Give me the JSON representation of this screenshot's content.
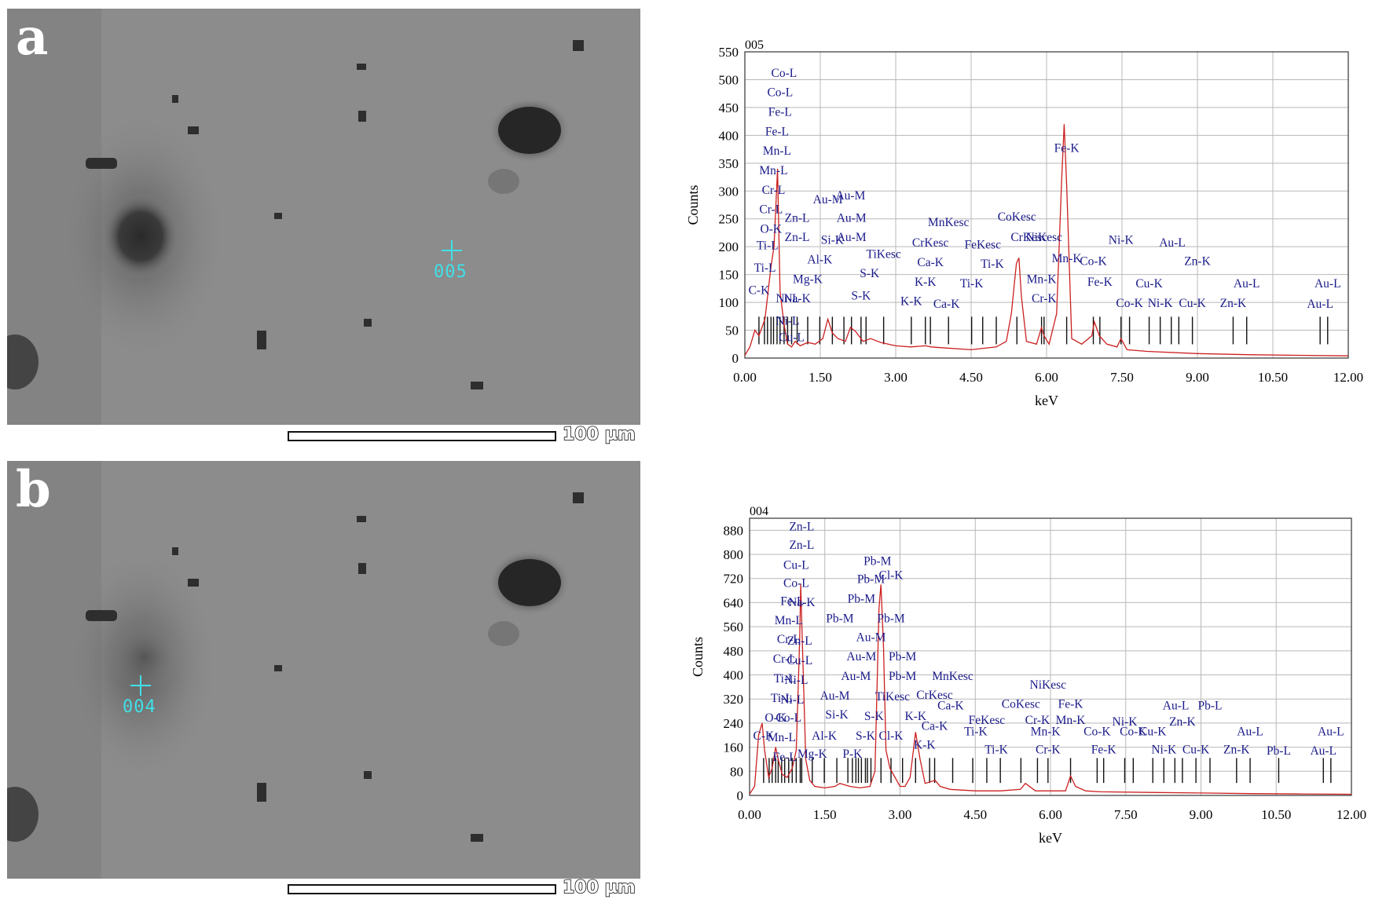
{
  "panels": [
    {
      "letter": "a",
      "marker_label": "005",
      "scale_label": "100 µm"
    },
    {
      "letter": "b",
      "marker_label": "004",
      "scale_label": "100 µm"
    }
  ],
  "colors": {
    "spectrum": "#cc2020",
    "element_label": "#1a1a8a",
    "marker": "#40e0e8",
    "grid": "#b8b8b8"
  },
  "chart_data": [
    {
      "type": "line",
      "title": "005",
      "xlabel": "keV",
      "ylabel": "Counts",
      "xlim": [
        0,
        12
      ],
      "ylim": [
        0,
        550
      ],
      "x_ticks": [
        0,
        1.5,
        3,
        4.5,
        6,
        7.5,
        9,
        10.5,
        12
      ],
      "x_tick_labels": [
        "0.00",
        "1.50",
        "3.00",
        "4.50",
        "6.00",
        "7.50",
        "9.00",
        "10.50",
        "12.00"
      ],
      "y_ticks": [
        0,
        50,
        100,
        150,
        200,
        250,
        300,
        350,
        400,
        450,
        500,
        550
      ],
      "grid": true,
      "series": [
        {
          "x": [
            0.0,
            0.1,
            0.2,
            0.28,
            0.4,
            0.52,
            0.58,
            0.65,
            0.7,
            0.78,
            0.85,
            0.93,
            1.0,
            1.1,
            1.25,
            1.4,
            1.55,
            1.65,
            1.74,
            1.85,
            2.0,
            2.1,
            2.2,
            2.35,
            2.5,
            2.7,
            3.0,
            3.3,
            3.6,
            3.7,
            4.0,
            4.5,
            5.0,
            5.2,
            5.3,
            5.4,
            5.45,
            5.5,
            5.6,
            5.8,
            5.9,
            5.95,
            6.05,
            6.2,
            6.3,
            6.35,
            6.4,
            6.5,
            6.7,
            6.9,
            6.95,
            7.05,
            7.2,
            7.4,
            7.48,
            7.6,
            8.0,
            9.0,
            10.0,
            11.0,
            12.0
          ],
          "y": [
            5,
            20,
            50,
            40,
            70,
            165,
            200,
            340,
            120,
            60,
            25,
            20,
            30,
            22,
            28,
            25,
            35,
            70,
            45,
            35,
            30,
            55,
            48,
            30,
            35,
            28,
            22,
            20,
            22,
            20,
            18,
            15,
            20,
            30,
            80,
            170,
            180,
            110,
            30,
            25,
            55,
            40,
            25,
            80,
            320,
            420,
            310,
            35,
            25,
            40,
            65,
            40,
            25,
            20,
            35,
            15,
            12,
            8,
            6,
            5,
            4
          ]
        }
      ],
      "element_lines_keV": [
        0.28,
        0.39,
        0.45,
        0.52,
        0.57,
        0.64,
        0.7,
        0.78,
        0.85,
        0.93,
        1.04,
        1.25,
        1.49,
        1.74,
        1.97,
        2.12,
        2.31,
        2.41,
        2.76,
        3.31,
        3.59,
        3.69,
        4.05,
        4.51,
        4.73,
        5.0,
        5.41,
        5.9,
        5.95,
        6.4,
        6.93,
        7.06,
        7.48,
        7.65,
        8.04,
        8.26,
        8.48,
        8.63,
        8.9,
        9.71,
        9.98,
        11.44,
        11.59
      ],
      "annotations": [
        {
          "text": "Co-L",
          "x": 0.78,
          "y": 505
        },
        {
          "text": "Co-L",
          "x": 0.7,
          "y": 470
        },
        {
          "text": "Fe-L",
          "x": 0.7,
          "y": 435
        },
        {
          "text": "Fe-L",
          "x": 0.64,
          "y": 400
        },
        {
          "text": "Mn-L",
          "x": 0.64,
          "y": 365
        },
        {
          "text": "Mn-L",
          "x": 0.57,
          "y": 330
        },
        {
          "text": "Cr-L",
          "x": 0.57,
          "y": 295
        },
        {
          "text": "Cr-L",
          "x": 0.52,
          "y": 260
        },
        {
          "text": "O-K",
          "x": 0.52,
          "y": 225
        },
        {
          "text": "Ti-L",
          "x": 0.45,
          "y": 195
        },
        {
          "text": "Ti-L",
          "x": 0.4,
          "y": 155
        },
        {
          "text": "C-K",
          "x": 0.28,
          "y": 115
        },
        {
          "text": "Ni-L",
          "x": 0.85,
          "y": 100
        },
        {
          "text": "Cu-L",
          "x": 0.93,
          "y": 30
        },
        {
          "text": "Ni-L",
          "x": 0.85,
          "y": 60
        },
        {
          "text": "Zn-L",
          "x": 1.04,
          "y": 245
        },
        {
          "text": "Zn-L",
          "x": 1.04,
          "y": 210
        },
        {
          "text": "Na-K",
          "x": 1.04,
          "y": 100
        },
        {
          "text": "Mg-K",
          "x": 1.25,
          "y": 135
        },
        {
          "text": "Al-K",
          "x": 1.49,
          "y": 170
        },
        {
          "text": "Si-K",
          "x": 1.74,
          "y": 205
        },
        {
          "text": "Au-M",
          "x": 1.65,
          "y": 278
        },
        {
          "text": "Au-M",
          "x": 2.1,
          "y": 285
        },
        {
          "text": "Au-M",
          "x": 2.12,
          "y": 245
        },
        {
          "text": "Au-M",
          "x": 2.12,
          "y": 210
        },
        {
          "text": "S-K",
          "x": 2.31,
          "y": 105
        },
        {
          "text": "S-K",
          "x": 2.48,
          "y": 145
        },
        {
          "text": "TiKesc",
          "x": 2.76,
          "y": 180
        },
        {
          "text": "K-K",
          "x": 3.31,
          "y": 95
        },
        {
          "text": "K-K",
          "x": 3.59,
          "y": 130
        },
        {
          "text": "Ca-K",
          "x": 3.69,
          "y": 165
        },
        {
          "text": "Ca-K",
          "x": 4.01,
          "y": 90
        },
        {
          "text": "CrKesc",
          "x": 3.69,
          "y": 200
        },
        {
          "text": "MnKesc",
          "x": 4.05,
          "y": 237
        },
        {
          "text": "FeKesc",
          "x": 4.73,
          "y": 197
        },
        {
          "text": "CoKesc",
          "x": 5.41,
          "y": 247
        },
        {
          "text": "Ti-K",
          "x": 4.51,
          "y": 127
        },
        {
          "text": "Ti-K",
          "x": 4.92,
          "y": 162
        },
        {
          "text": "CrKesc",
          "x": 5.65,
          "y": 210
        },
        {
          "text": "NiKesc",
          "x": 5.95,
          "y": 210
        },
        {
          "text": "Mn-K",
          "x": 5.9,
          "y": 135
        },
        {
          "text": "Cr-K",
          "x": 5.95,
          "y": 100
        },
        {
          "text": "Mn-K",
          "x": 6.4,
          "y": 172
        },
        {
          "text": "Fe-K",
          "x": 6.4,
          "y": 370
        },
        {
          "text": "Co-K",
          "x": 6.93,
          "y": 167
        },
        {
          "text": "Fe-K",
          "x": 7.06,
          "y": 130
        },
        {
          "text": "Ni-K",
          "x": 7.48,
          "y": 205
        },
        {
          "text": "Cu-K",
          "x": 8.04,
          "y": 127
        },
        {
          "text": "Co-K",
          "x": 7.65,
          "y": 92
        },
        {
          "text": "Ni-K",
          "x": 8.26,
          "y": 92
        },
        {
          "text": "Cu-K",
          "x": 8.9,
          "y": 92
        },
        {
          "text": "Zn-K",
          "x": 9.0,
          "y": 167
        },
        {
          "text": "Au-L",
          "x": 8.5,
          "y": 200
        },
        {
          "text": "Zn-K",
          "x": 9.71,
          "y": 92
        },
        {
          "text": "Au-L",
          "x": 9.98,
          "y": 127
        },
        {
          "text": "Au-L",
          "x": 11.59,
          "y": 127
        },
        {
          "text": "Au-L",
          "x": 11.44,
          "y": 90
        }
      ]
    },
    {
      "type": "line",
      "title": "004",
      "xlabel": "keV",
      "ylabel": "Counts",
      "xlim": [
        0,
        12
      ],
      "ylim": [
        0,
        920
      ],
      "x_ticks": [
        0,
        1.5,
        3,
        4.5,
        6,
        7.5,
        9,
        10.5,
        12
      ],
      "x_tick_labels": [
        "0.00",
        "1.50",
        "3.00",
        "4.50",
        "6.00",
        "7.50",
        "9.00",
        "10.50",
        "12.00"
      ],
      "y_ticks": [
        0,
        80,
        160,
        240,
        320,
        400,
        480,
        560,
        640,
        720,
        800,
        880
      ],
      "grid": true,
      "series": [
        {
          "x": [
            0.0,
            0.1,
            0.18,
            0.25,
            0.3,
            0.38,
            0.45,
            0.52,
            0.57,
            0.65,
            0.75,
            0.85,
            0.93,
            1.0,
            1.02,
            1.06,
            1.12,
            1.2,
            1.3,
            1.5,
            1.7,
            1.8,
            2.0,
            2.2,
            2.4,
            2.5,
            2.58,
            2.62,
            2.67,
            2.72,
            2.8,
            2.9,
            3.0,
            3.1,
            3.2,
            3.31,
            3.4,
            3.5,
            3.7,
            3.8,
            4.0,
            4.5,
            5.0,
            5.4,
            5.5,
            5.7,
            6.0,
            6.3,
            6.4,
            6.5,
            6.7,
            7.0,
            8.0,
            9.0,
            10.0,
            11.0,
            12.0
          ],
          "y": [
            5,
            30,
            200,
            240,
            150,
            60,
            90,
            160,
            120,
            70,
            60,
            90,
            150,
            520,
            700,
            460,
            120,
            50,
            30,
            25,
            30,
            40,
            30,
            25,
            30,
            80,
            620,
            700,
            500,
            150,
            90,
            60,
            30,
            30,
            60,
            210,
            120,
            40,
            50,
            30,
            20,
            15,
            15,
            20,
            40,
            15,
            15,
            15,
            65,
            30,
            15,
            12,
            10,
            8,
            6,
            5,
            4
          ]
        }
      ],
      "element_lines_keV": [
        0.28,
        0.39,
        0.45,
        0.52,
        0.57,
        0.64,
        0.7,
        0.78,
        0.85,
        0.93,
        1.01,
        1.04,
        1.25,
        1.49,
        1.74,
        1.96,
        2.05,
        2.12,
        2.17,
        2.23,
        2.31,
        2.35,
        2.42,
        2.62,
        2.82,
        3.05,
        3.31,
        3.59,
        3.69,
        4.05,
        4.45,
        4.73,
        5.0,
        5.41,
        5.74,
        5.95,
        6.4,
        6.93,
        7.06,
        7.48,
        7.65,
        8.04,
        8.26,
        8.48,
        8.63,
        8.9,
        9.18,
        9.71,
        9.98,
        10.55,
        11.44,
        11.59
      ],
      "annotations": [
        {
          "text": "Zn-L",
          "x": 1.04,
          "y": 880
        },
        {
          "text": "Zn-L",
          "x": 1.04,
          "y": 818
        },
        {
          "text": "Cu-L",
          "x": 0.93,
          "y": 752
        },
        {
          "text": "Co-L",
          "x": 0.93,
          "y": 692
        },
        {
          "text": "Fe-L",
          "x": 0.85,
          "y": 632
        },
        {
          "text": "Na-K",
          "x": 1.04,
          "y": 628
        },
        {
          "text": "Mn-L",
          "x": 0.78,
          "y": 568
        },
        {
          "text": "Cr-L",
          "x": 0.78,
          "y": 505
        },
        {
          "text": "Zn-L",
          "x": 1.0,
          "y": 500
        },
        {
          "text": "Cr-L",
          "x": 0.7,
          "y": 440
        },
        {
          "text": "Cu-L",
          "x": 1.0,
          "y": 435
        },
        {
          "text": "Ti-L",
          "x": 0.7,
          "y": 375
        },
        {
          "text": "Ni-L",
          "x": 0.93,
          "y": 370
        },
        {
          "text": "Ti-L",
          "x": 0.64,
          "y": 310
        },
        {
          "text": "Ni-L",
          "x": 0.85,
          "y": 305
        },
        {
          "text": "O-K",
          "x": 0.52,
          "y": 245
        },
        {
          "text": "Co-L",
          "x": 0.78,
          "y": 245
        },
        {
          "text": "C-K",
          "x": 0.28,
          "y": 185
        },
        {
          "text": "Mn-L",
          "x": 0.64,
          "y": 180
        },
        {
          "text": "Fe-L",
          "x": 0.7,
          "y": 115
        },
        {
          "text": "Mg-K",
          "x": 1.25,
          "y": 125
        },
        {
          "text": "Al-K",
          "x": 1.49,
          "y": 185
        },
        {
          "text": "Si-K",
          "x": 1.74,
          "y": 255
        },
        {
          "text": "Au-M",
          "x": 1.7,
          "y": 318
        },
        {
          "text": "P-K",
          "x": 2.05,
          "y": 125
        },
        {
          "text": "S-K",
          "x": 2.31,
          "y": 185
        },
        {
          "text": "S-K",
          "x": 2.48,
          "y": 250
        },
        {
          "text": "Au-M",
          "x": 2.12,
          "y": 383
        },
        {
          "text": "Au-M",
          "x": 2.23,
          "y": 448
        },
        {
          "text": "Au-M",
          "x": 2.42,
          "y": 512
        },
        {
          "text": "Pb-M",
          "x": 1.8,
          "y": 575
        },
        {
          "text": "Pb-M",
          "x": 2.23,
          "y": 640
        },
        {
          "text": "Pb-M",
          "x": 2.42,
          "y": 705
        },
        {
          "text": "Pb-M",
          "x": 2.55,
          "y": 765
        },
        {
          "text": "Pb-M",
          "x": 2.82,
          "y": 575
        },
        {
          "text": "Cl-K",
          "x": 2.82,
          "y": 718
        },
        {
          "text": "Pb-M",
          "x": 3.05,
          "y": 448
        },
        {
          "text": "Pb-M",
          "x": 3.05,
          "y": 383
        },
        {
          "text": "TiKesc",
          "x": 2.85,
          "y": 315
        },
        {
          "text": "Cl-K",
          "x": 2.82,
          "y": 185
        },
        {
          "text": "K-K",
          "x": 3.31,
          "y": 250
        },
        {
          "text": "K-K",
          "x": 3.49,
          "y": 155
        },
        {
          "text": "Ca-K",
          "x": 3.69,
          "y": 218
        },
        {
          "text": "Ca-K",
          "x": 4.01,
          "y": 285
        },
        {
          "text": "CrKesc",
          "x": 3.69,
          "y": 320
        },
        {
          "text": "MnKesc",
          "x": 4.05,
          "y": 383
        },
        {
          "text": "FeKesc",
          "x": 4.73,
          "y": 237
        },
        {
          "text": "CoKesc",
          "x": 5.41,
          "y": 290
        },
        {
          "text": "NiKesc",
          "x": 5.95,
          "y": 355
        },
        {
          "text": "Ti-K",
          "x": 4.51,
          "y": 200
        },
        {
          "text": "Ti-K",
          "x": 4.92,
          "y": 140
        },
        {
          "text": "Cr-K",
          "x": 5.74,
          "y": 237
        },
        {
          "text": "Mn-K",
          "x": 5.9,
          "y": 200
        },
        {
          "text": "Cr-K",
          "x": 5.95,
          "y": 140
        },
        {
          "text": "Fe-K",
          "x": 6.4,
          "y": 290
        },
        {
          "text": "Mn-K",
          "x": 6.4,
          "y": 237
        },
        {
          "text": "Co-K",
          "x": 6.93,
          "y": 200
        },
        {
          "text": "Fe-K",
          "x": 7.06,
          "y": 140
        },
        {
          "text": "Ni-K",
          "x": 7.48,
          "y": 232
        },
        {
          "text": "Co-K",
          "x": 7.65,
          "y": 200
        },
        {
          "text": "Cu-K",
          "x": 8.04,
          "y": 200
        },
        {
          "text": "Ni-K",
          "x": 8.26,
          "y": 140
        },
        {
          "text": "Cu-K",
          "x": 8.9,
          "y": 140
        },
        {
          "text": "Au-L",
          "x": 8.5,
          "y": 285
        },
        {
          "text": "Pb-L",
          "x": 9.18,
          "y": 285
        },
        {
          "text": "Zn-K",
          "x": 8.63,
          "y": 232
        },
        {
          "text": "Zn-K",
          "x": 9.71,
          "y": 140
        },
        {
          "text": "Au-L",
          "x": 9.98,
          "y": 200
        },
        {
          "text": "Pb-L",
          "x": 10.55,
          "y": 135
        },
        {
          "text": "Au-L",
          "x": 11.59,
          "y": 200
        },
        {
          "text": "Au-L",
          "x": 11.44,
          "y": 135
        }
      ]
    }
  ]
}
